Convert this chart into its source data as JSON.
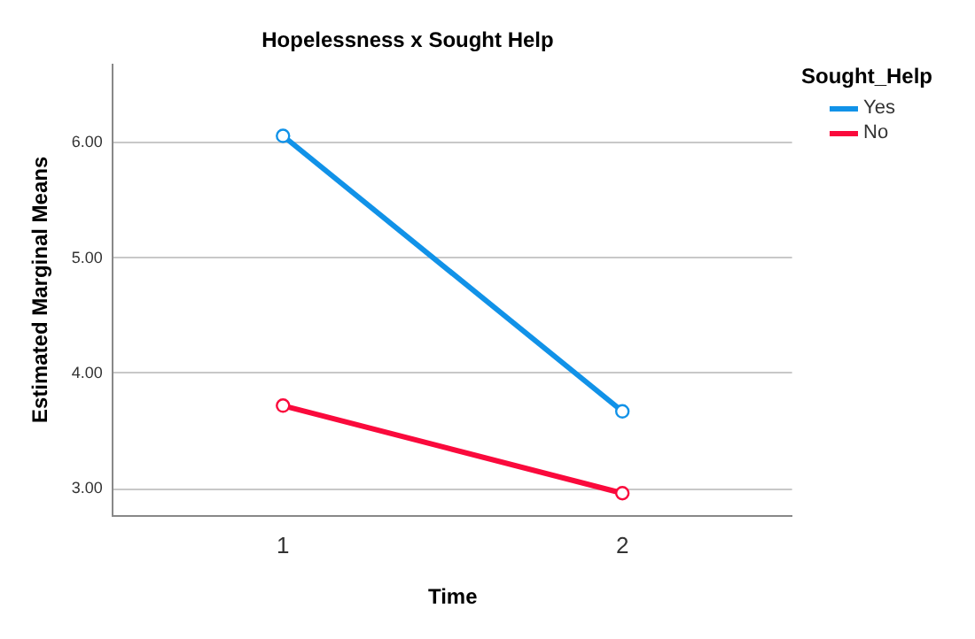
{
  "chart_data": {
    "type": "line",
    "title": "Hopelessness x Sought Help",
    "xlabel": "Time",
    "ylabel": "Estimated Marginal Means",
    "legend_title": "Sought_Help",
    "categories": [
      "1",
      "2"
    ],
    "series": [
      {
        "name": "Yes",
        "color": "#1192e8",
        "values": [
          6.06,
          3.67
        ]
      },
      {
        "name": "No",
        "color": "#fa0a3c",
        "values": [
          3.72,
          2.96
        ]
      }
    ],
    "ylim": [
      2.77,
      6.68
    ],
    "yticks": [
      {
        "value": 3,
        "label": "3.00"
      },
      {
        "value": 4,
        "label": "4.00"
      },
      {
        "value": 5,
        "label": "5.00"
      },
      {
        "value": 6,
        "label": "6.00"
      }
    ],
    "grid": "y",
    "legend": "top right",
    "marker": "circle",
    "line_style": "solid"
  }
}
